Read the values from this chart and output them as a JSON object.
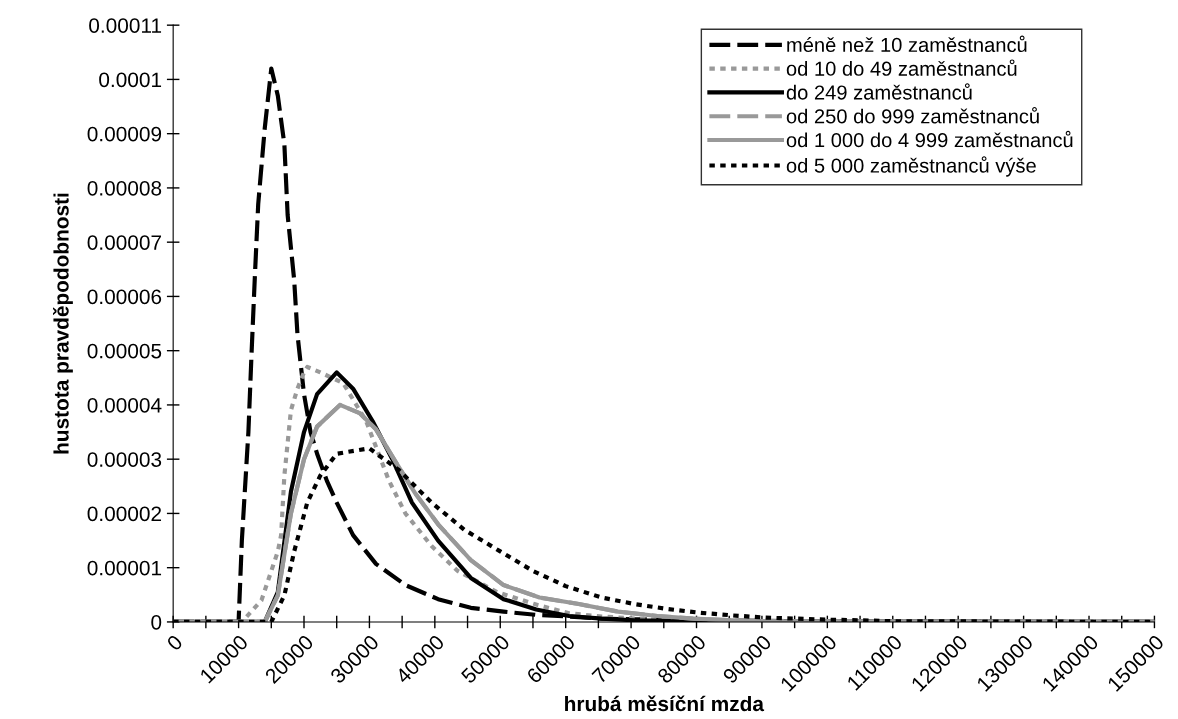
{
  "chart_data": {
    "type": "line",
    "xlabel": "hrubá měsíční mzda",
    "ylabel": "hustota pravděpodobnosti",
    "xlim": [
      0,
      150000
    ],
    "ylim": [
      0,
      0.00011
    ],
    "xticks": [
      0,
      {
        "value": 5000,
        "label": null
      },
      10000,
      {
        "value": 15000,
        "label": null
      },
      20000,
      {
        "value": 25000,
        "label": null
      },
      30000,
      {
        "value": 35000,
        "label": null
      },
      40000,
      {
        "value": 45000,
        "label": null
      },
      50000,
      {
        "value": 55000,
        "label": null
      },
      60000,
      {
        "value": 65000,
        "label": null
      },
      70000,
      {
        "value": 75000,
        "label": null
      },
      80000,
      {
        "value": 85000,
        "label": null
      },
      90000,
      {
        "value": 95000,
        "label": null
      },
      100000,
      {
        "value": 105000,
        "label": null
      },
      110000,
      {
        "value": 115000,
        "label": null
      },
      120000,
      {
        "value": 125000,
        "label": null
      },
      130000,
      {
        "value": 135000,
        "label": null
      },
      140000,
      {
        "value": 145000,
        "label": null
      },
      150000
    ],
    "yticks": [
      {
        "value": 0,
        "label": "0"
      },
      {
        "value": 1e-05,
        "label": "0.00001"
      },
      {
        "value": 2e-05,
        "label": "0.00002"
      },
      {
        "value": 3e-05,
        "label": "0.00003"
      },
      {
        "value": 4e-05,
        "label": "0.00004"
      },
      {
        "value": 5e-05,
        "label": "0.00005"
      },
      {
        "value": 6e-05,
        "label": "0.00006"
      },
      {
        "value": 7e-05,
        "label": "0.00007"
      },
      {
        "value": 8e-05,
        "label": "0.00008"
      },
      {
        "value": 9e-05,
        "label": "0.00009"
      },
      {
        "value": 0.0001,
        "label": "0.0001"
      },
      {
        "value": 0.00011,
        "label": "0.00011"
      }
    ],
    "grid": false,
    "legend": "top right",
    "marker": "none",
    "series": [
      {
        "name": "méně než 10 zaměstnanců",
        "color": "#000000",
        "line_style": "dashed",
        "x": [
          0,
          10000,
          10500,
          11500,
          12000,
          12500,
          13000,
          14000,
          15000,
          16000,
          17000,
          17500,
          18500,
          19000,
          20000,
          21000,
          22000,
          23500,
          25000,
          27500,
          31000,
          35500,
          40500,
          45500,
          50500,
          55500,
          60500,
          65500,
          70500,
          80000,
          90000,
          100000,
          150000
        ],
        "values": [
          0,
          0,
          1.5e-05,
          3.5e-05,
          5e-05,
          6.4e-05,
          7.7e-05,
          9.1e-05,
          0.000102,
          9.7e-05,
          8.8e-05,
          7.5e-05,
          6.3e-05,
          5.3e-05,
          4.2e-05,
          3.5e-05,
          3.1e-05,
          2.6e-05,
          2.2e-05,
          1.6e-05,
          1.07e-05,
          6.8e-06,
          4.2e-06,
          2.6e-06,
          1.9e-06,
          1.3e-06,
          1e-06,
          6e-07,
          5e-07,
          3e-07,
          2e-07,
          1e-07,
          0
        ]
      },
      {
        "name": "od 10 do 49 zaměstnanců",
        "color": "#999999",
        "line_style": "dotted",
        "x": [
          0,
          10500,
          13500,
          16000,
          16500,
          17000,
          18000,
          19000,
          20000,
          20500,
          22500,
          26000,
          29500,
          33000,
          35500,
          39500,
          43500,
          49500,
          55500,
          60500,
          65500,
          75000,
          90000,
          150000
        ],
        "values": [
          0,
          0,
          4e-06,
          1.3e-05,
          1.6e-05,
          2.7e-05,
          3.9e-05,
          4.3e-05,
          4.6e-05,
          4.7e-05,
          4.6e-05,
          4.4e-05,
          3.7e-05,
          2.6e-05,
          2e-05,
          1.4e-05,
          9.4e-06,
          5.5e-06,
          3.2e-06,
          1.6e-06,
          1e-06,
          3e-07,
          1e-07,
          0
        ]
      },
      {
        "name": "do 249 zaměstnanců",
        "color": "#000000",
        "line_style": "solid",
        "x": [
          0,
          14000,
          16000,
          18000,
          20000,
          22000,
          25000,
          27500,
          30500,
          33500,
          36500,
          40500,
          45500,
          50500,
          55500,
          60500,
          65500,
          70500,
          80000,
          90000,
          150000
        ],
        "values": [
          0,
          0,
          5.5e-06,
          2.4e-05,
          3.5e-05,
          4.2e-05,
          4.6e-05,
          4.3e-05,
          3.7e-05,
          3e-05,
          2.2e-05,
          1.5e-05,
          8.1e-06,
          4.2e-06,
          2.3e-06,
          1.1e-06,
          6e-07,
          3e-07,
          1e-07,
          1e-07,
          0
        ]
      },
      {
        "name": "od 250 do 999 zaměstnanců",
        "color": "#999999",
        "line_style": "dashed",
        "x": [
          0,
          14000,
          16000,
          18000,
          20000,
          22000,
          25500,
          28500,
          31000,
          34000,
          37000,
          40500,
          45500,
          50500,
          56000,
          62000,
          68000,
          74000,
          79500,
          85500,
          91500,
          100000,
          150000
        ],
        "values": [
          0,
          0,
          4.9e-06,
          2e-05,
          3e-05,
          3.6e-05,
          4e-05,
          3.85e-05,
          3.55e-05,
          2.95e-05,
          2.37e-05,
          1.8e-05,
          1.14e-05,
          6.8e-06,
          4.5e-06,
          3.3e-06,
          1.9e-06,
          1.1e-06,
          6e-07,
          3e-07,
          1e-07,
          1e-07,
          0
        ]
      },
      {
        "name": "od 1 000 do 4 999 zaměstnanců",
        "color": "#999999",
        "line_style": "solid",
        "x": [
          0,
          14000,
          16000,
          18000,
          20000,
          22000,
          25500,
          28500,
          31000,
          34000,
          37000,
          40500,
          45500,
          50500,
          56000,
          62000,
          68000,
          74000,
          79500,
          85500,
          91500,
          100000,
          150000
        ],
        "values": [
          0,
          0,
          4.9e-06,
          2e-05,
          3e-05,
          3.6e-05,
          4e-05,
          3.85e-05,
          3.55e-05,
          2.95e-05,
          2.37e-05,
          1.8e-05,
          1.14e-05,
          6.8e-06,
          4.5e-06,
          3.3e-06,
          1.9e-06,
          1.1e-06,
          6e-07,
          3e-07,
          1e-07,
          1e-07,
          0
        ]
      },
      {
        "name": "od 5 000 zaměstnanců výše",
        "color": "#000000",
        "line_style": "dotted",
        "x": [
          0,
          15000,
          17000,
          18500,
          20500,
          22500,
          25000,
          30000,
          34500,
          39500,
          44500,
          50000,
          55000,
          60000,
          65500,
          70500,
          75500,
          80500,
          85500,
          90500,
          95500,
          100500,
          105500,
          110500,
          120000,
          150000
        ],
        "values": [
          0,
          0,
          4.9e-06,
          1.3e-05,
          2.2e-05,
          2.7e-05,
          3.1e-05,
          3.2e-05,
          2.8e-05,
          2.2e-05,
          1.7e-05,
          1.3e-05,
          9.4e-06,
          6.6e-06,
          4.5e-06,
          3.3e-06,
          2.4e-06,
          1.7e-06,
          1.2e-06,
          8e-07,
          6e-07,
          4e-07,
          3e-07,
          1e-07,
          1e-07,
          0
        ]
      }
    ]
  }
}
